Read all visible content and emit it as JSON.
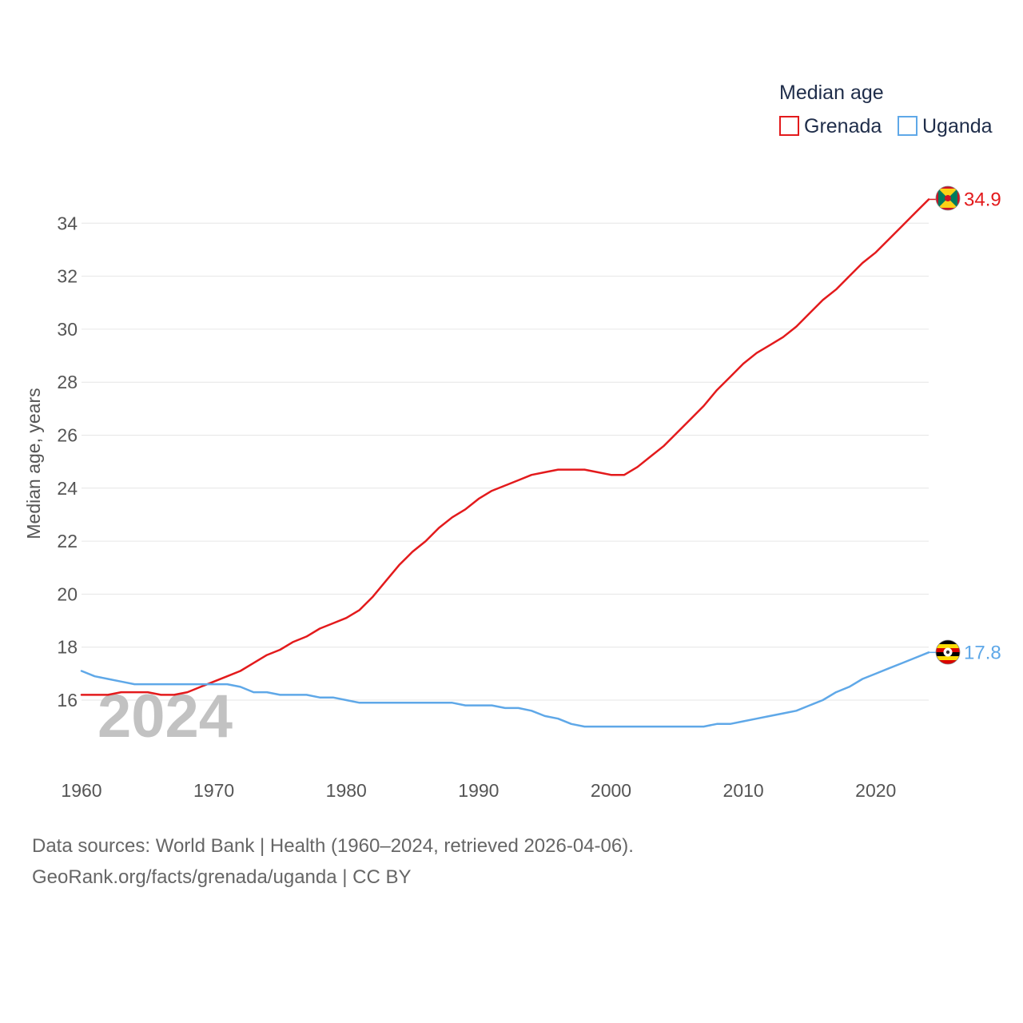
{
  "chart_data": {
    "type": "line",
    "legend_title": "Median age",
    "ylabel": "Median age, years",
    "xlabel": "",
    "year_label": "2024",
    "xlim": [
      1960,
      2024
    ],
    "ylim": [
      14.2,
      35.5
    ],
    "x_ticks": [
      1960,
      1970,
      1980,
      1990,
      2000,
      2010,
      2020
    ],
    "y_ticks": [
      16,
      18,
      20,
      22,
      24,
      26,
      28,
      30,
      32,
      34
    ],
    "legend_position": "top-right",
    "x": [
      1960,
      1961,
      1962,
      1963,
      1964,
      1965,
      1966,
      1967,
      1968,
      1969,
      1970,
      1971,
      1972,
      1973,
      1974,
      1975,
      1976,
      1977,
      1978,
      1979,
      1980,
      1981,
      1982,
      1983,
      1984,
      1985,
      1986,
      1987,
      1988,
      1989,
      1990,
      1991,
      1992,
      1993,
      1994,
      1995,
      1996,
      1997,
      1998,
      1999,
      2000,
      2001,
      2002,
      2003,
      2004,
      2005,
      2006,
      2007,
      2008,
      2009,
      2010,
      2011,
      2012,
      2013,
      2014,
      2015,
      2016,
      2017,
      2018,
      2019,
      2020,
      2021,
      2022,
      2023,
      2024
    ],
    "series": [
      {
        "name": "Grenada",
        "color": "#e31a1c",
        "end_label": "34.9",
        "values": [
          16.2,
          16.2,
          16.2,
          16.3,
          16.3,
          16.3,
          16.2,
          16.2,
          16.3,
          16.5,
          16.7,
          16.9,
          17.1,
          17.4,
          17.7,
          17.9,
          18.2,
          18.4,
          18.7,
          18.9,
          19.1,
          19.4,
          19.9,
          20.5,
          21.1,
          21.6,
          22.0,
          22.5,
          22.9,
          23.2,
          23.6,
          23.9,
          24.1,
          24.3,
          24.5,
          24.6,
          24.7,
          24.7,
          24.7,
          24.6,
          24.5,
          24.5,
          24.8,
          25.2,
          25.6,
          26.1,
          26.6,
          27.1,
          27.7,
          28.2,
          28.7,
          29.1,
          29.4,
          29.7,
          30.1,
          30.6,
          31.1,
          31.5,
          32.0,
          32.5,
          32.9,
          33.4,
          33.9,
          34.4,
          34.9
        ]
      },
      {
        "name": "Uganda",
        "color": "#5fa8e8",
        "end_label": "17.8",
        "values": [
          17.1,
          16.9,
          16.8,
          16.7,
          16.6,
          16.6,
          16.6,
          16.6,
          16.6,
          16.6,
          16.6,
          16.6,
          16.5,
          16.3,
          16.3,
          16.2,
          16.2,
          16.2,
          16.1,
          16.1,
          16.0,
          15.9,
          15.9,
          15.9,
          15.9,
          15.9,
          15.9,
          15.9,
          15.9,
          15.8,
          15.8,
          15.8,
          15.7,
          15.7,
          15.6,
          15.4,
          15.3,
          15.1,
          15.0,
          15.0,
          15.0,
          15.0,
          15.0,
          15.0,
          15.0,
          15.0,
          15.0,
          15.0,
          15.1,
          15.1,
          15.2,
          15.3,
          15.4,
          15.5,
          15.6,
          15.8,
          16.0,
          16.3,
          16.5,
          16.8,
          17.0,
          17.2,
          17.4,
          17.6,
          17.8
        ]
      }
    ]
  },
  "footer": {
    "source_line": "Data sources: World Bank | Health (1960–2024, retrieved 2026-04-06).",
    "attribution_line": "GeoRank.org/facts/grenada/uganda | CC BY"
  }
}
